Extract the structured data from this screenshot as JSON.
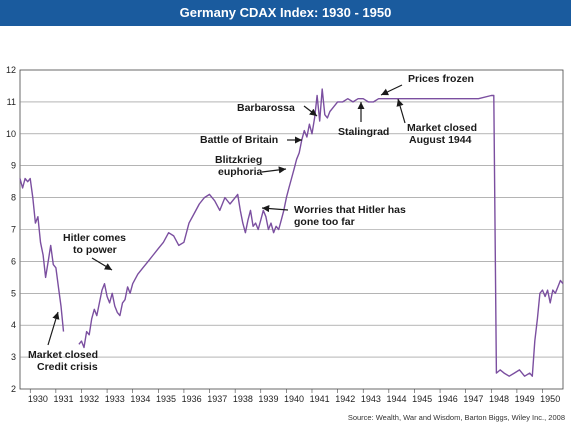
{
  "chart_data": {
    "type": "line",
    "title": "Germany CDAX Index: 1930 - 1950",
    "xlabel": "",
    "ylabel": "",
    "ylim": [
      2,
      12
    ],
    "xlim": [
      1929.6,
      1950.8
    ],
    "yticks": [
      2,
      3,
      4,
      5,
      6,
      7,
      8,
      9,
      10,
      11,
      12
    ],
    "xticks": [
      "1930",
      "1931",
      "1932",
      "1933",
      "1934",
      "1935",
      "1936",
      "1937",
      "1938",
      "1939",
      "1940",
      "1941",
      "1942",
      "1943",
      "1944",
      "1945",
      "1946",
      "1947",
      "1948",
      "1949",
      "1950"
    ],
    "grid": "horizontal",
    "line_color": "#7b4fa0",
    "series": [
      {
        "name": "",
        "x": [
          1929.6,
          1929.7,
          1929.8,
          1929.9,
          1930.0,
          1930.1,
          1930.2,
          1930.3,
          1930.4,
          1930.5,
          1930.6,
          1930.7,
          1930.8,
          1930.9,
          1931.0,
          1931.1,
          1931.2,
          1931.3,
          1931.9,
          1932.0,
          1932.1,
          1932.2,
          1932.3,
          1932.4,
          1932.5,
          1932.6,
          1932.7,
          1932.8,
          1932.9,
          1933.0,
          1933.1,
          1933.2,
          1933.3,
          1933.4,
          1933.5,
          1933.6,
          1933.7,
          1933.8,
          1933.9,
          1934.0,
          1934.2,
          1934.4,
          1934.6,
          1934.8,
          1935.0,
          1935.2,
          1935.4,
          1935.6,
          1935.8,
          1936.0,
          1936.2,
          1936.4,
          1936.6,
          1936.8,
          1937.0,
          1937.2,
          1937.4,
          1937.6,
          1937.8,
          1938.0,
          1938.1,
          1938.2,
          1938.3,
          1938.4,
          1938.5,
          1938.6,
          1938.7,
          1938.8,
          1938.9,
          1939.0,
          1939.1,
          1939.2,
          1939.3,
          1939.4,
          1939.5,
          1939.6,
          1939.7,
          1939.8,
          1939.9,
          1940.0,
          1940.1,
          1940.2,
          1940.3,
          1940.4,
          1940.5,
          1940.6,
          1940.7,
          1940.8,
          1940.9,
          1941.0,
          1941.1,
          1941.2,
          1941.3,
          1941.4,
          1941.5,
          1941.6,
          1941.7,
          1941.8,
          1942.0,
          1942.2,
          1942.4,
          1942.6,
          1942.8,
          1943.0,
          1943.2,
          1943.4,
          1943.6,
          1943.8,
          1944.0,
          1944.5,
          1945.0,
          1945.5,
          1946.0,
          1946.5,
          1947.0,
          1947.5,
          1948.0,
          1948.1,
          1948.2,
          1948.35,
          1948.5,
          1948.7,
          1948.9,
          1949.1,
          1949.3,
          1949.5,
          1949.6,
          1949.7,
          1949.8,
          1949.9,
          1950.0,
          1950.1,
          1950.2,
          1950.3,
          1950.4,
          1950.5,
          1950.6,
          1950.7,
          1950.8
        ],
        "y": [
          8.6,
          8.3,
          8.6,
          8.5,
          8.6,
          8.0,
          7.2,
          7.4,
          6.6,
          6.2,
          5.5,
          6.0,
          6.5,
          5.9,
          5.8,
          5.2,
          4.6,
          3.8,
          3.4,
          3.5,
          3.3,
          3.8,
          3.7,
          4.2,
          4.5,
          4.3,
          4.7,
          5.1,
          5.3,
          4.9,
          4.7,
          5.0,
          4.6,
          4.4,
          4.3,
          4.7,
          4.8,
          5.2,
          5.0,
          5.3,
          5.6,
          5.8,
          6.0,
          6.2,
          6.4,
          6.6,
          6.9,
          6.8,
          6.5,
          6.6,
          7.2,
          7.5,
          7.8,
          8.0,
          8.1,
          7.9,
          7.6,
          8.0,
          7.8,
          8.0,
          8.1,
          7.6,
          7.2,
          6.9,
          7.3,
          7.6,
          7.1,
          7.2,
          7.0,
          7.3,
          7.6,
          7.4,
          7.0,
          7.2,
          6.9,
          7.1,
          7.0,
          7.3,
          7.6,
          8.0,
          8.3,
          8.6,
          8.9,
          9.2,
          9.4,
          9.8,
          10.1,
          9.9,
          10.3,
          10.0,
          10.5,
          11.2,
          10.4,
          11.4,
          10.6,
          10.5,
          10.7,
          10.8,
          11.0,
          11.0,
          11.1,
          11.0,
          11.1,
          11.1,
          11.0,
          11.0,
          11.1,
          11.1,
          11.1,
          11.1,
          11.1,
          11.1,
          11.1,
          11.1,
          11.1,
          11.1,
          11.2,
          11.2,
          2.5,
          2.6,
          2.5,
          2.4,
          2.5,
          2.6,
          2.4,
          2.5,
          2.4,
          3.5,
          4.2,
          5.0,
          5.1,
          4.9,
          5.1,
          4.7,
          5.1,
          5.0,
          5.2,
          5.4,
          5.3
        ]
      }
    ],
    "annotations": [
      {
        "text": "Hitler comes to power",
        "lines": [
          "Hitler comes",
          "to power"
        ]
      },
      {
        "text": "Market closed Credit crisis",
        "lines": [
          "Market closed",
          "Credit crisis"
        ]
      },
      {
        "text": "Barbarossa",
        "lines": [
          "Barbarossa"
        ]
      },
      {
        "text": "Battle of Britain",
        "lines": [
          "Battle of Britain"
        ]
      },
      {
        "text": "Blitzkrieg euphoria",
        "lines": [
          "Blitzkrieg",
          "euphoria"
        ]
      },
      {
        "text": "Worries that Hitler has gone too far",
        "lines": [
          "Worries that Hitler has",
          "gone too far"
        ]
      },
      {
        "text": "Stalingrad",
        "lines": [
          "Stalingrad"
        ]
      },
      {
        "text": "Prices frozen",
        "lines": [
          "Prices frozen"
        ]
      },
      {
        "text": "Market closed August 1944",
        "lines": [
          "Market closed",
          "August 1944"
        ]
      }
    ],
    "source": "Source: Wealth, War and Wisdom, Barton Biggs, Wiley Inc., 2008"
  }
}
